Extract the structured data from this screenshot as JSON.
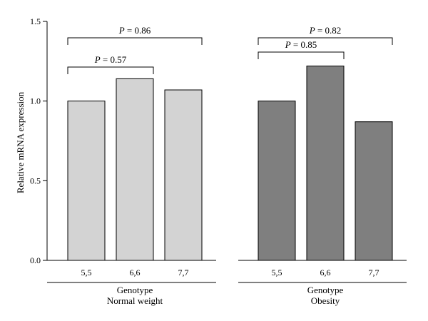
{
  "chart_data": {
    "type": "bar",
    "ylabel": "Relative mRNA expression",
    "ylim": [
      0,
      1.5
    ],
    "yticks": [
      "0.0",
      "0.5",
      "1.0",
      "1.5"
    ],
    "grid": false,
    "groups": [
      {
        "name": "Normal weight",
        "axis_title": "Genotype",
        "color": "#d3d3d3",
        "categories": [
          "5,5",
          "6,6",
          "7,7"
        ],
        "values": [
          1.0,
          1.14,
          1.07
        ],
        "comparisons": [
          {
            "from": 0,
            "to": 2,
            "p_symbol": "P",
            "p_text": " = 0.86"
          },
          {
            "from": 0,
            "to": 1,
            "p_symbol": "P",
            "p_text": " = 0.57"
          }
        ]
      },
      {
        "name": "Obesity",
        "axis_title": "Genotype",
        "color": "#7f7f7f",
        "categories": [
          "5,5",
          "6,6",
          "7,7"
        ],
        "values": [
          1.0,
          1.22,
          0.87
        ],
        "comparisons": [
          {
            "from": 0,
            "to": 2,
            "p_symbol": "P",
            "p_text": " = 0.82"
          },
          {
            "from": 0,
            "to": 1,
            "p_symbol": "P",
            "p_text": " = 0.85"
          }
        ]
      }
    ]
  }
}
